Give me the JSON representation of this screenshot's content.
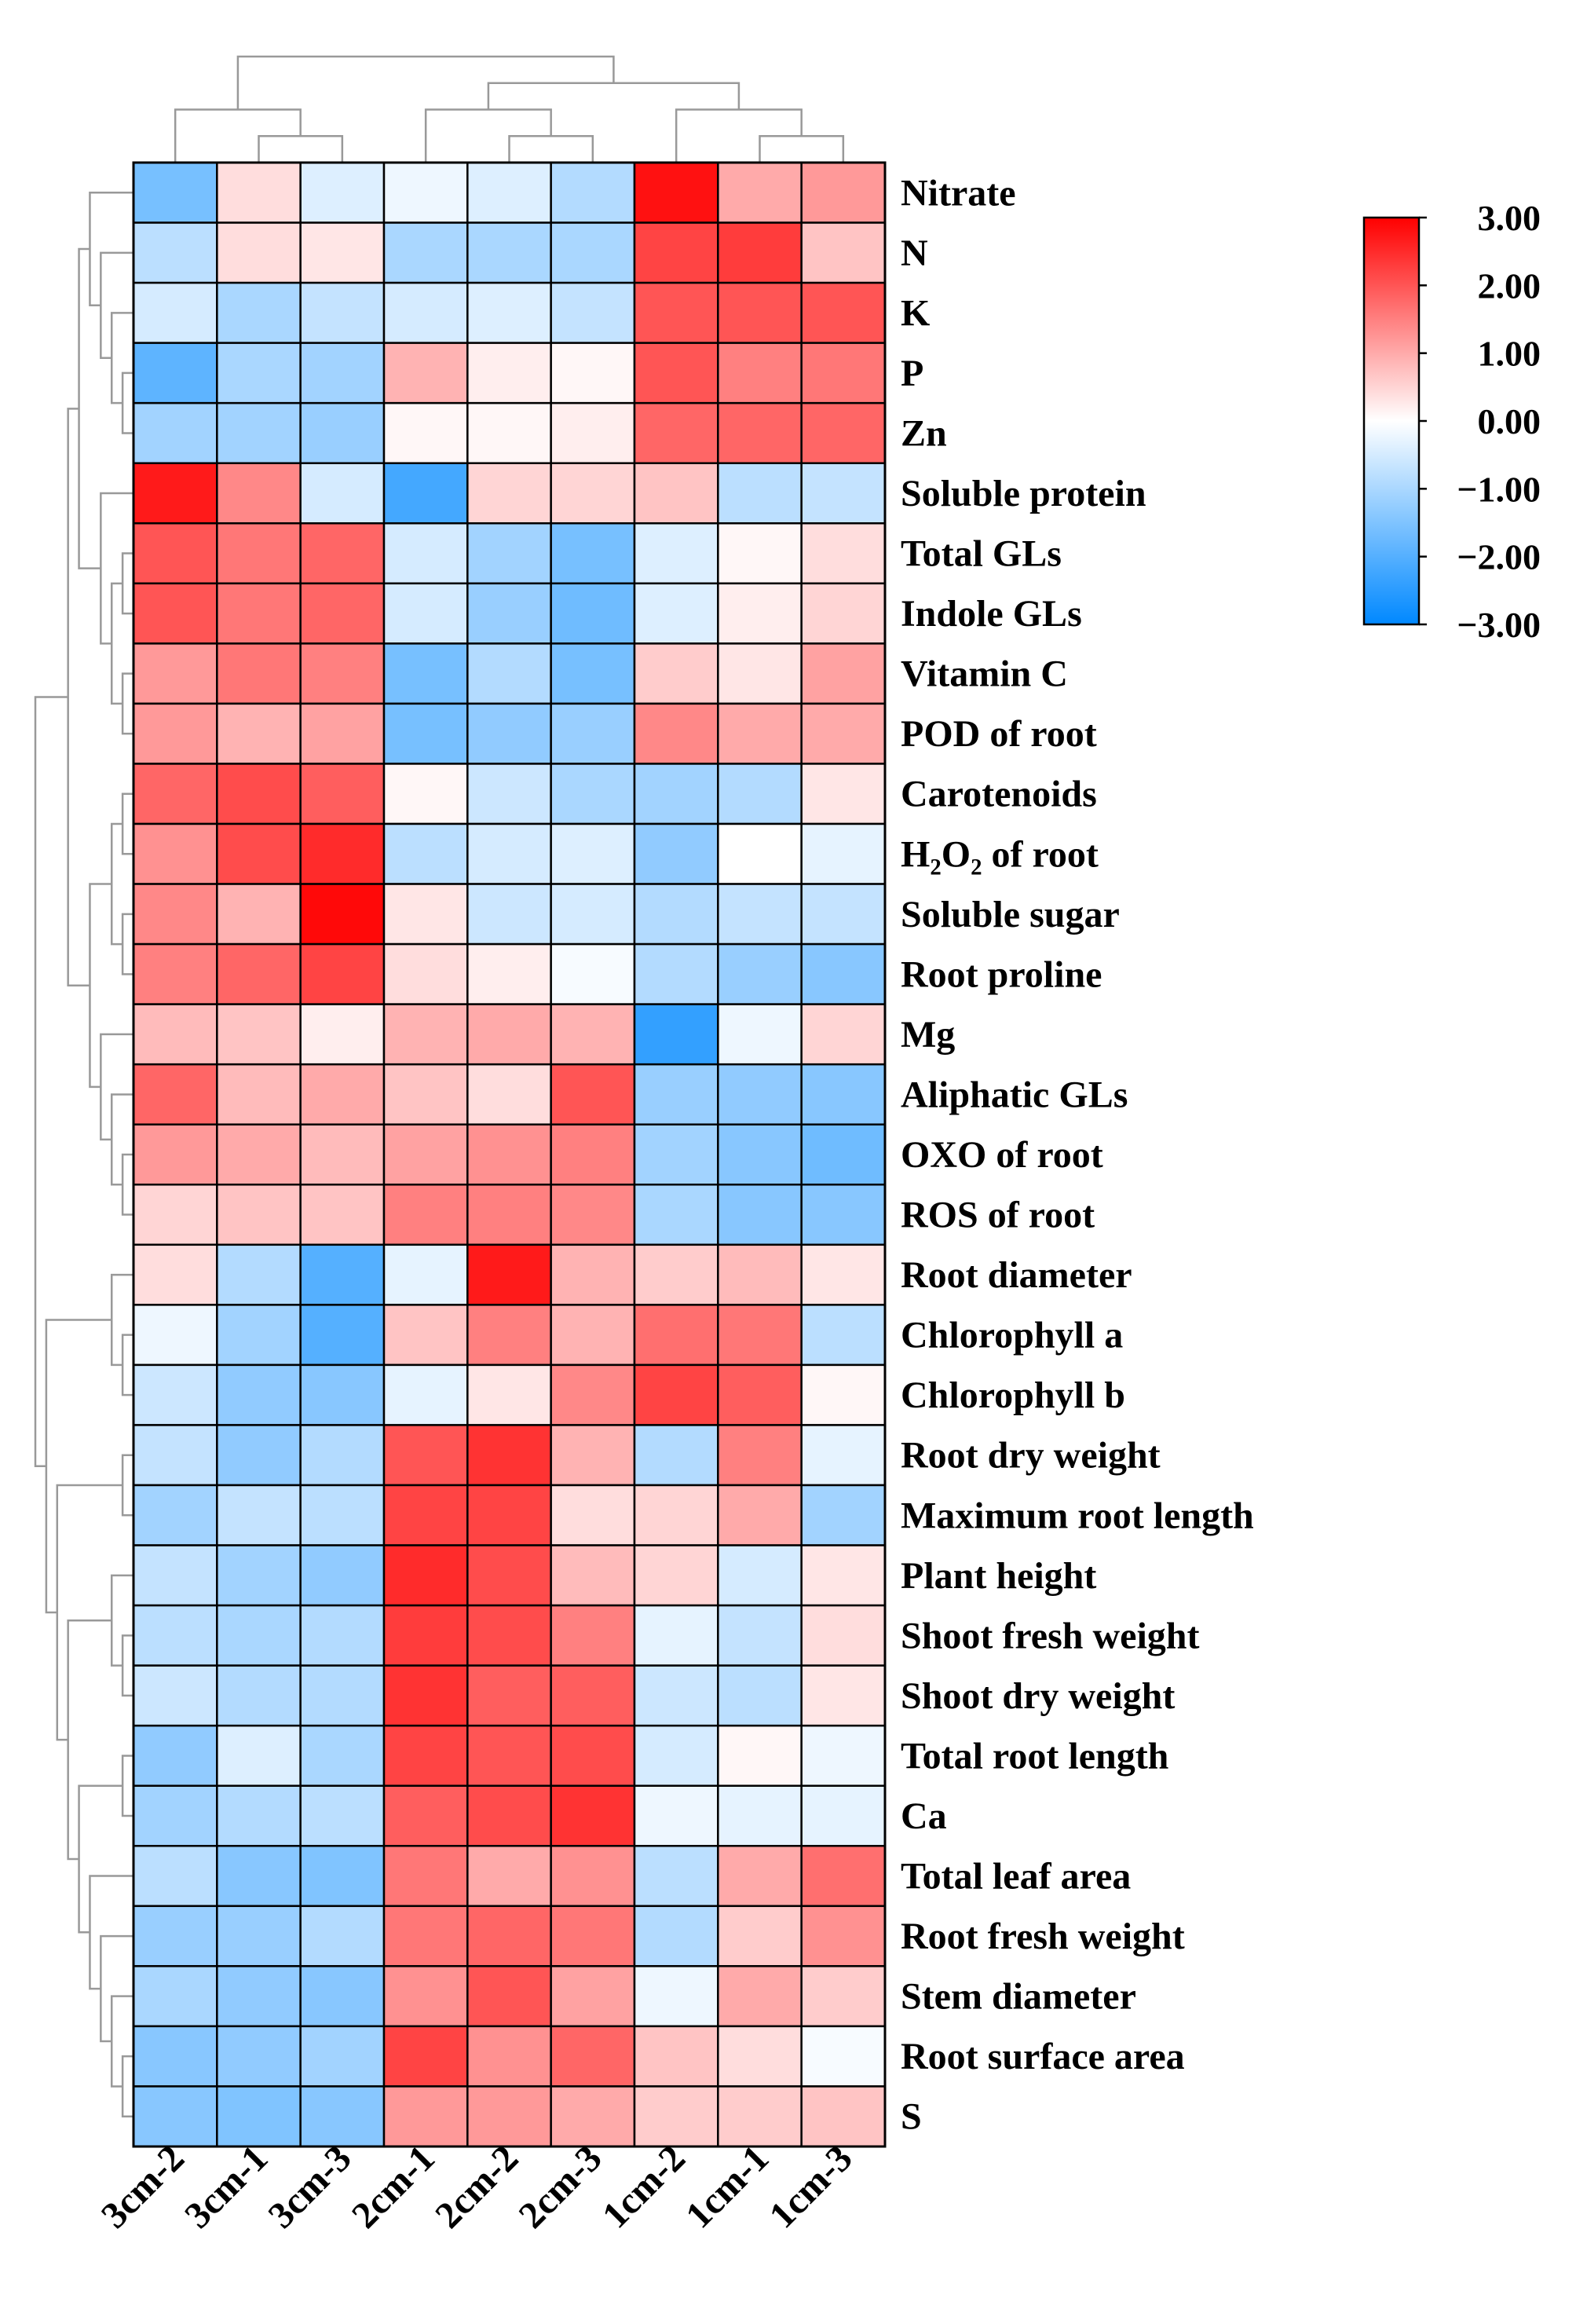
{
  "chart_data": {
    "type": "heatmap",
    "title": "",
    "columns": [
      "3cm-2",
      "3cm-1",
      "3cm-3",
      "2cm-1",
      "2cm-2",
      "2cm-3",
      "1cm-2",
      "1cm-1",
      "1cm-3"
    ],
    "rows": [
      {
        "label": "Nitrate",
        "values": [
          -1.6,
          0.4,
          -0.4,
          -0.2,
          -0.4,
          -0.9,
          2.8,
          1.0,
          1.2
        ]
      },
      {
        "label": "N",
        "values": [
          -0.8,
          0.4,
          0.3,
          -1.0,
          -1.0,
          -1.0,
          2.2,
          2.3,
          0.7
        ]
      },
      {
        "label": "K",
        "values": [
          -0.5,
          -1.0,
          -0.7,
          -0.5,
          -0.4,
          -0.7,
          2.0,
          2.0,
          2.0
        ]
      },
      {
        "label": "P",
        "values": [
          -1.9,
          -1.0,
          -1.1,
          0.9,
          0.2,
          0.1,
          2.0,
          1.5,
          1.6
        ]
      },
      {
        "label": "Zn",
        "values": [
          -1.1,
          -1.1,
          -1.2,
          0.1,
          0.1,
          0.2,
          1.8,
          1.8,
          1.8
        ]
      },
      {
        "label": "Soluble protein",
        "values": [
          2.7,
          1.4,
          -0.5,
          -2.2,
          0.5,
          0.5,
          0.7,
          -0.8,
          -0.7
        ]
      },
      {
        "label": "Total GLs",
        "values": [
          2.0,
          1.6,
          1.8,
          -0.5,
          -1.1,
          -1.6,
          -0.4,
          0.1,
          0.4
        ]
      },
      {
        "label": "Indole GLs",
        "values": [
          2.0,
          1.6,
          1.8,
          -0.5,
          -1.2,
          -1.7,
          -0.4,
          0.2,
          0.5
        ]
      },
      {
        "label": "Vitamin C",
        "values": [
          1.2,
          1.6,
          1.5,
          -1.6,
          -0.9,
          -1.6,
          0.6,
          0.3,
          1.1
        ]
      },
      {
        "label": "POD of root",
        "values": [
          1.2,
          0.9,
          1.1,
          -1.6,
          -1.3,
          -1.2,
          1.4,
          1.0,
          1.0
        ]
      },
      {
        "label": "Carotenoids",
        "values": [
          1.8,
          2.1,
          1.9,
          0.1,
          -0.6,
          -1.0,
          -1.1,
          -0.9,
          0.3
        ]
      },
      {
        "label": "H₂O₂ of root",
        "values": [
          1.3,
          2.1,
          2.5,
          -0.8,
          -0.5,
          -0.4,
          -1.3,
          0.0,
          -0.3
        ]
      },
      {
        "label": "Soluble sugar",
        "values": [
          1.4,
          0.9,
          2.9,
          0.3,
          -0.6,
          -0.5,
          -0.9,
          -0.7,
          -0.7
        ]
      },
      {
        "label": "Root proline",
        "values": [
          1.5,
          1.8,
          2.2,
          0.4,
          0.2,
          -0.1,
          -0.9,
          -1.2,
          -1.4
        ]
      },
      {
        "label": "Mg",
        "values": [
          0.8,
          0.7,
          0.2,
          0.9,
          1.0,
          0.9,
          -2.4,
          -0.2,
          0.5
        ]
      },
      {
        "label": "Aliphatic GLs",
        "values": [
          1.8,
          0.8,
          1.0,
          0.7,
          0.4,
          2.0,
          -1.2,
          -1.3,
          -1.4
        ]
      },
      {
        "label": "OXO of root",
        "values": [
          1.2,
          1.0,
          0.8,
          1.1,
          1.3,
          1.5,
          -1.1,
          -1.4,
          -1.7
        ]
      },
      {
        "label": "ROS of root",
        "values": [
          0.5,
          0.7,
          0.7,
          1.5,
          1.5,
          1.4,
          -1.0,
          -1.4,
          -1.4
        ]
      },
      {
        "label": "Root diameter",
        "values": [
          0.4,
          -0.9,
          -2.0,
          -0.3,
          2.7,
          0.9,
          0.6,
          0.8,
          0.3
        ]
      },
      {
        "label": "Chlorophyll a",
        "values": [
          -0.2,
          -1.1,
          -2.0,
          0.7,
          1.5,
          0.9,
          1.7,
          1.6,
          -0.8
        ]
      },
      {
        "label": "Chlorophyll b",
        "values": [
          -0.6,
          -1.3,
          -1.4,
          -0.3,
          0.3,
          1.4,
          2.2,
          1.9,
          0.1
        ]
      },
      {
        "label": "Root dry weight",
        "values": [
          -0.7,
          -1.3,
          -0.9,
          2.0,
          2.4,
          0.9,
          -0.9,
          1.5,
          -0.3
        ]
      },
      {
        "label": "Maximum root length",
        "values": [
          -1.1,
          -0.7,
          -0.8,
          2.2,
          2.2,
          0.4,
          0.5,
          1.0,
          -1.1
        ]
      },
      {
        "label": "Plant height",
        "values": [
          -0.7,
          -1.1,
          -1.3,
          2.5,
          2.1,
          0.8,
          0.5,
          -0.5,
          0.3
        ]
      },
      {
        "label": "Shoot fresh weight",
        "values": [
          -0.8,
          -1.0,
          -0.9,
          2.3,
          2.1,
          1.5,
          -0.3,
          -0.7,
          0.4
        ]
      },
      {
        "label": "Shoot dry weight",
        "values": [
          -0.6,
          -0.9,
          -0.9,
          2.4,
          1.9,
          1.9,
          -0.6,
          -0.8,
          0.3
        ]
      },
      {
        "label": "Total root length",
        "values": [
          -1.3,
          -0.4,
          -1.0,
          2.2,
          2.0,
          2.1,
          -0.5,
          0.1,
          -0.2
        ]
      },
      {
        "label": "Ca",
        "values": [
          -1.1,
          -0.9,
          -0.8,
          1.9,
          2.1,
          2.4,
          -0.2,
          -0.3,
          -0.3
        ]
      },
      {
        "label": "Total leaf area",
        "values": [
          -0.8,
          -1.4,
          -1.5,
          1.6,
          1.0,
          1.3,
          -0.8,
          1.0,
          1.7
        ]
      },
      {
        "label": "Root fresh weight",
        "values": [
          -1.2,
          -1.2,
          -0.9,
          1.6,
          1.8,
          1.6,
          -0.9,
          0.6,
          1.3
        ]
      },
      {
        "label": "Stem diameter",
        "values": [
          -1.0,
          -1.3,
          -1.4,
          1.3,
          2.0,
          1.1,
          -0.2,
          1.0,
          0.6
        ]
      },
      {
        "label": "Root surface area",
        "values": [
          -1.4,
          -1.3,
          -1.1,
          2.2,
          1.3,
          1.8,
          0.7,
          0.4,
          -0.1
        ]
      },
      {
        "label": "S",
        "values": [
          -1.4,
          -1.5,
          -1.4,
          1.2,
          1.2,
          1.0,
          0.6,
          0.6,
          0.7
        ]
      }
    ],
    "colorbar": {
      "ticks": [
        "3.00",
        "2.00",
        "1.00",
        "0.00",
        "−1.00",
        "−2.00",
        "−3.00"
      ],
      "range": [
        -3,
        3
      ],
      "high_color": "#ff0000",
      "mid_color": "#ffffff",
      "low_color": "#0088ff"
    },
    "dendrogram_color": "#999999",
    "grid_color": "#000000"
  }
}
